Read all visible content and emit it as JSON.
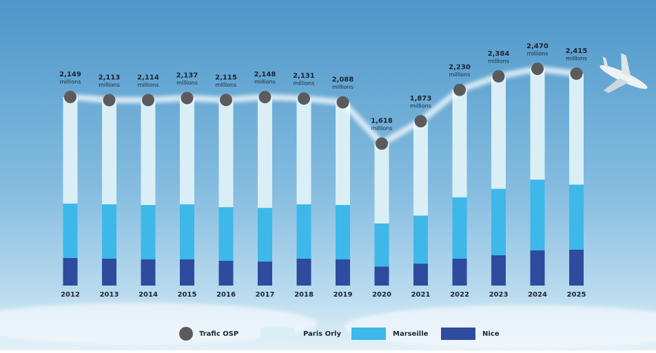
{
  "chart_data": {
    "type": "bar",
    "stacked": true,
    "value_unit": "millions",
    "categories": [
      "2012",
      "2013",
      "2014",
      "2015",
      "2016",
      "2017",
      "2018",
      "2019",
      "2020",
      "2021",
      "2022",
      "2023",
      "2024",
      "2025"
    ],
    "series": [
      {
        "name": "Trafic OSP",
        "type": "line",
        "color": "#5b5b5b",
        "values": [
          2149,
          2113,
          2114,
          2137,
          2115,
          2148,
          2131,
          2088,
          1618,
          1873,
          2230,
          2384,
          2470,
          2415
        ],
        "value_labels": [
          "2,149",
          "2,113",
          "2,114",
          "2,137",
          "2,115",
          "2,148",
          "2,131",
          "2,088",
          "1,618",
          "1,873",
          "2,230",
          "2,384",
          "2,470",
          "2,415"
        ]
      },
      {
        "name": "Paris Orly",
        "color": "#d9eef5",
        "values": [
          1215,
          1187,
          1196,
          1211,
          1222,
          1263,
          1205,
          1170,
          910,
          1076,
          1224,
          1282,
          1263,
          1265
        ]
      },
      {
        "name": "Marseille",
        "color": "#3db8e9",
        "values": [
          620,
          620,
          620,
          628,
          611,
          611,
          620,
          620,
          491,
          547,
          700,
          756,
          805,
          740
        ]
      },
      {
        "name": "Nice",
        "color": "#2e4b9e",
        "values": [
          314,
          306,
          298,
          298,
          282,
          274,
          306,
          298,
          217,
          250,
          306,
          346,
          402,
          410
        ]
      }
    ]
  }
}
